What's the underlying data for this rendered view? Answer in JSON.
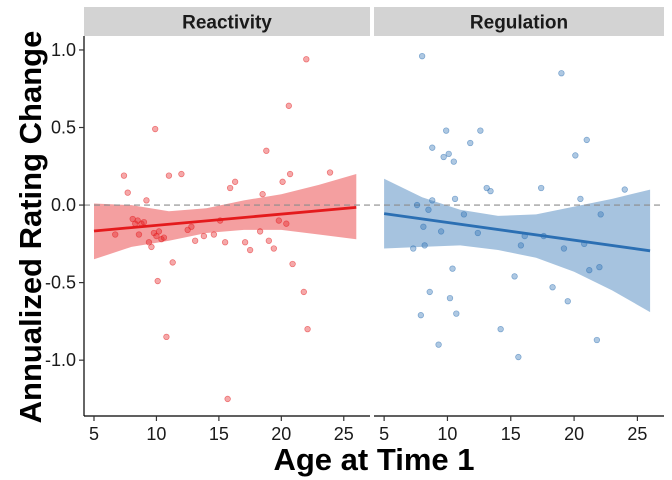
{
  "chart_data": {
    "type": "scatter",
    "xlabel": "Age at Time 1",
    "ylabel": "Annualized Rating Change",
    "xlim": [
      4.2,
      27.1
    ],
    "ylim": [
      -1.36,
      1.09
    ],
    "x_ticks": [
      5,
      10,
      15,
      20,
      25
    ],
    "y_ticks": [
      -1.0,
      -0.5,
      0.0,
      0.5,
      1.0
    ],
    "y_tick_labels": [
      "-1.0",
      "-0.5",
      "0.0",
      "0.5",
      "1.0"
    ],
    "reference_line": 0,
    "grid": false,
    "legend": "none",
    "panels": [
      {
        "name": "Reactivity",
        "color": "#e41a1c",
        "points": [
          [
            6.7,
            -0.19
          ],
          [
            7.4,
            0.19
          ],
          [
            7.7,
            0.08
          ],
          [
            8.1,
            -0.09
          ],
          [
            8.3,
            -0.12
          ],
          [
            8.5,
            -0.1
          ],
          [
            8.6,
            -0.19
          ],
          [
            8.8,
            -0.12
          ],
          [
            9.0,
            -0.11
          ],
          [
            9.2,
            0.03
          ],
          [
            9.4,
            -0.24
          ],
          [
            9.6,
            -0.27
          ],
          [
            9.8,
            -0.18
          ],
          [
            9.9,
            0.49
          ],
          [
            10.0,
            -0.2
          ],
          [
            10.1,
            -0.49
          ],
          [
            10.2,
            -0.17
          ],
          [
            10.4,
            -0.22
          ],
          [
            10.6,
            -0.21
          ],
          [
            10.8,
            -0.85
          ],
          [
            11.0,
            0.19
          ],
          [
            11.3,
            -0.37
          ],
          [
            12.0,
            0.2
          ],
          [
            12.5,
            -0.16
          ],
          [
            12.8,
            -0.14
          ],
          [
            13.1,
            -0.23
          ],
          [
            13.8,
            -0.2
          ],
          [
            14.6,
            -0.19
          ],
          [
            15.1,
            -0.1
          ],
          [
            15.5,
            -0.24
          ],
          [
            15.7,
            -1.25
          ],
          [
            15.9,
            0.11
          ],
          [
            16.3,
            0.15
          ],
          [
            17.1,
            -0.24
          ],
          [
            17.5,
            -0.29
          ],
          [
            18.3,
            -0.17
          ],
          [
            18.5,
            0.07
          ],
          [
            18.8,
            0.35
          ],
          [
            19.0,
            -0.23
          ],
          [
            19.4,
            -0.28
          ],
          [
            19.8,
            -0.1
          ],
          [
            20.1,
            0.15
          ],
          [
            20.4,
            -0.12
          ],
          [
            20.6,
            0.64
          ],
          [
            20.7,
            0.2
          ],
          [
            20.9,
            -0.38
          ],
          [
            21.8,
            -0.56
          ],
          [
            22.0,
            0.94
          ],
          [
            22.1,
            -0.8
          ],
          [
            23.9,
            0.21
          ]
        ],
        "fit": {
          "x": [
            5,
            26
          ],
          "y": [
            -0.167,
            -0.015
          ]
        },
        "ci_upper": {
          "x": [
            5,
            8,
            11,
            14,
            17,
            20,
            23,
            26
          ],
          "y": [
            0.01,
            0.0,
            -0.04,
            -0.02,
            0.03,
            0.07,
            0.13,
            0.2
          ]
        },
        "ci_lower": {
          "x": [
            5,
            8,
            11,
            14,
            17,
            20,
            23,
            26
          ],
          "y": [
            -0.35,
            -0.27,
            -0.23,
            -0.18,
            -0.16,
            -0.16,
            -0.19,
            -0.22
          ]
        }
      },
      {
        "name": "Regulation",
        "color": "#2b6fb3",
        "points": [
          [
            7.3,
            -0.28
          ],
          [
            7.6,
            0.0
          ],
          [
            7.9,
            -0.71
          ],
          [
            8.0,
            0.96
          ],
          [
            8.1,
            -0.14
          ],
          [
            8.2,
            -0.26
          ],
          [
            8.5,
            -0.03
          ],
          [
            8.6,
            -0.56
          ],
          [
            8.8,
            0.03
          ],
          [
            8.8,
            0.37
          ],
          [
            9.3,
            -0.9
          ],
          [
            9.5,
            -0.17
          ],
          [
            9.7,
            0.31
          ],
          [
            9.9,
            0.48
          ],
          [
            10.1,
            0.33
          ],
          [
            10.2,
            -0.6
          ],
          [
            10.4,
            -0.41
          ],
          [
            10.5,
            0.28
          ],
          [
            10.6,
            0.04
          ],
          [
            10.7,
            -0.7
          ],
          [
            11.3,
            -0.06
          ],
          [
            11.8,
            0.4
          ],
          [
            12.4,
            -0.18
          ],
          [
            12.6,
            0.48
          ],
          [
            13.1,
            0.11
          ],
          [
            13.4,
            0.09
          ],
          [
            14.2,
            -0.8
          ],
          [
            15.3,
            -0.46
          ],
          [
            15.6,
            -0.98
          ],
          [
            15.8,
            -0.26
          ],
          [
            16.1,
            -0.2
          ],
          [
            17.4,
            0.11
          ],
          [
            17.6,
            -0.2
          ],
          [
            18.3,
            -0.53
          ],
          [
            19.0,
            0.85
          ],
          [
            19.2,
            -0.28
          ],
          [
            19.5,
            -0.62
          ],
          [
            20.1,
            0.32
          ],
          [
            20.5,
            0.04
          ],
          [
            20.8,
            -0.25
          ],
          [
            21.0,
            0.42
          ],
          [
            21.2,
            -0.42
          ],
          [
            21.8,
            -0.87
          ],
          [
            22.0,
            -0.4
          ],
          [
            22.1,
            -0.06
          ],
          [
            24.0,
            0.1
          ]
        ],
        "fit": {
          "x": [
            5,
            26
          ],
          "y": [
            -0.055,
            -0.295
          ]
        },
        "ci_upper": {
          "x": [
            5,
            8,
            11,
            14,
            17,
            20,
            23,
            26
          ],
          "y": [
            0.17,
            0.05,
            -0.03,
            -0.07,
            -0.06,
            -0.01,
            0.04,
            0.1
          ]
        },
        "ci_lower": {
          "x": [
            5,
            8,
            11,
            14,
            17,
            20,
            23,
            26
          ],
          "y": [
            -0.28,
            -0.27,
            -0.26,
            -0.29,
            -0.34,
            -0.43,
            -0.55,
            -0.69
          ]
        }
      }
    ]
  }
}
